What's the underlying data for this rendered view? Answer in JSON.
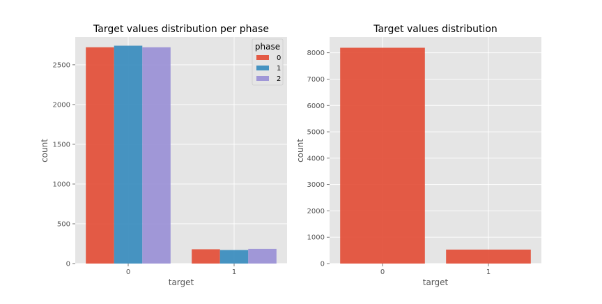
{
  "chart_data": [
    {
      "type": "bar",
      "title": "Target values distribution per phase",
      "xlabel": "target",
      "ylabel": "count",
      "categories": [
        "0",
        "1"
      ],
      "series": [
        {
          "name": "0",
          "values": [
            2720,
            180
          ]
        },
        {
          "name": "1",
          "values": [
            2740,
            170
          ]
        },
        {
          "name": "2",
          "values": [
            2720,
            185
          ]
        }
      ],
      "ylim": [
        0,
        2850
      ],
      "yticks": [
        0,
        500,
        1000,
        1500,
        2000,
        2500
      ],
      "legend": {
        "title": "phase",
        "placement": "top-right"
      },
      "grid": true
    },
    {
      "type": "bar",
      "title": "Target values distribution",
      "xlabel": "target",
      "ylabel": "count",
      "categories": [
        "0",
        "1"
      ],
      "values": [
        8190,
        530
      ],
      "ylim": [
        0,
        8600
      ],
      "yticks": [
        0,
        1000,
        2000,
        3000,
        4000,
        5000,
        6000,
        7000,
        8000
      ],
      "grid": true
    }
  ],
  "colors": {
    "background": "#e5e5e5",
    "grid": "#ffffff",
    "series": [
      "#e24a33",
      "#348abd",
      "#988ed5"
    ],
    "bar_opacity": 0.9
  }
}
